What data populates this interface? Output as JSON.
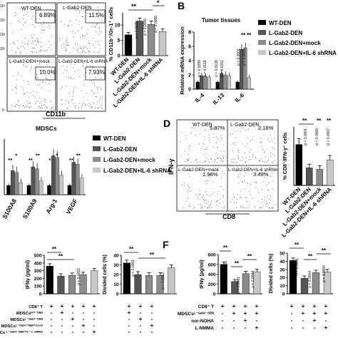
{
  "colors": {
    "wt": "#000000",
    "lgab2": "#555555",
    "mock": "#8c8c8c",
    "shrna": "#c8c8c8"
  },
  "panelA": {
    "flow_quadrants": [
      {
        "label": "WT-DEN",
        "percent": "6.89%"
      },
      {
        "label": "L-Gab2-DEN",
        "percent": "11.5%"
      },
      {
        "label": "L-Gab2-DEN+mock",
        "percent": "10.0%"
      },
      {
        "label": "L-Gab2-DEN+IL-6 shRNA",
        "percent": "7.93%"
      }
    ],
    "flow_xlabel": "CD11b",
    "flow_ticks": [
      "0",
      "10¹",
      "10²",
      "10³",
      "10⁴"
    ]
  },
  "panelD": {
    "letter": "D",
    "flow_quadrants": [
      {
        "label": "WT-DEN",
        "percent": "5.87%"
      },
      {
        "label": "L-Gab2-DEN",
        "percent": "2.18%"
      },
      {
        "label": "L-Gab2-DEN+mock",
        "percent": "1.98%"
      },
      {
        "label": "L-Gab2-DEN+IL-6 shRNA",
        "percent": "3.49%"
      }
    ],
    "flow_xlabel": "CD8",
    "flow_ylabel": "IFN-γ"
  },
  "panelF": {
    "letter": "F"
  },
  "condition_tables": {
    "left": {
      "rows": [
        {
          "label": "CD8⁺ T",
          "signs": [
            "+",
            "+",
            "+",
            "+",
            "+",
            "+",
            "+",
            "+"
          ]
        },
        {
          "label": "MDSCsᵂᵀ⁻ᴰᴱᴺ",
          "signs": [
            "-",
            "+",
            "-",
            "-",
            "-",
            "+",
            "-",
            "-"
          ]
        },
        {
          "label": "MDSCsᴸ⁻ᴳᵃᵇ²⁻ᴰᴱᴺ",
          "signs": [
            "-",
            "-",
            "+",
            "-",
            "-",
            "-",
            "+",
            "-"
          ]
        },
        {
          "label": "MDSCsᴸ⁻ᴳᵃᵇ²⁻ᴰᴱᴺ⁺ᵐᵒᶜᵏ",
          "signs": [
            "-",
            "-",
            "-",
            "+",
            "-",
            "-",
            "-",
            "+"
          ]
        },
        {
          "label": "Cs ᴸ⁻ᴳᵃᵇ²⁻ᴰᴱᴺ⁺ᴵᴸ⁻⁶ ˢʰᴿᴺᴬ",
          "signs": [
            "-",
            "-",
            "-",
            "-",
            "+",
            "-",
            "-",
            "-"
          ]
        }
      ]
    },
    "right": {
      "rows": [
        {
          "label": "CD8⁺ T",
          "signs": [
            "+",
            "+",
            "+",
            "+",
            "+",
            "+",
            "+",
            "+"
          ]
        },
        {
          "label": "MDSCsᴸ⁻ᴳᵃᵇ²⁻ᴰᴱᴺ",
          "signs": [
            "-",
            "+",
            "+",
            "+",
            "-",
            "+",
            "+",
            "+"
          ]
        },
        {
          "label": "nor-NOHA",
          "signs": [
            "-",
            "-",
            "+",
            "-",
            "-",
            "-",
            "+",
            "-"
          ]
        },
        {
          "label": "L-NMMA",
          "signs": [
            "-",
            "-",
            "-",
            "+",
            "-",
            "-",
            "-",
            "+"
          ]
        }
      ]
    }
  },
  "chart_data": [
    {
      "id": "A-bar",
      "type": "bar",
      "ylabel": "% CD11b⁺/Gr-1⁺ cells",
      "categories": [
        "WT-DEN",
        "L-Gab2-DEN",
        "L-Gab2-DEN+mock",
        "L-Gab2-DEN+IL-6 shRNA"
      ],
      "values": [
        6.8,
        11.3,
        10.2,
        7.9
      ],
      "errors": [
        0.8,
        1.0,
        1.1,
        0.9
      ],
      "ylim": [
        0,
        14
      ],
      "yticks": [
        0,
        5,
        10
      ],
      "pvalues": [
        "p = 0.0025",
        "p = 0.0046",
        "p = 0.0086"
      ],
      "sig": [
        "**",
        "*"
      ]
    },
    {
      "id": "B-bar",
      "type": "bar",
      "letter": "B",
      "title": "Tumor tissues",
      "ylabel": "Relative mRNA expression",
      "categories": [
        "IL-4",
        "IL-13",
        "IL-6"
      ],
      "series": [
        {
          "name": "WT-DEN",
          "values": [
            1.0,
            1.0,
            1.0
          ],
          "errors": [
            0.2,
            0.2,
            0.2
          ]
        },
        {
          "name": "L-Gab2-DEN",
          "values": [
            1.9,
            2.2,
            5.6
          ],
          "errors": [
            0.4,
            0.5,
            0.7
          ]
        },
        {
          "name": "L-Gab2-DEN+mock",
          "values": [
            1.8,
            2.0,
            5.8
          ],
          "errors": [
            0.4,
            0.5,
            0.7
          ]
        },
        {
          "name": "L-Gab2-DEN+IL-6 shRNA",
          "values": [
            1.7,
            1.9,
            1.6
          ],
          "errors": [
            0.3,
            0.4,
            0.4
          ]
        }
      ],
      "ylim": [
        0,
        8
      ],
      "yticks": [
        0,
        2,
        4,
        6,
        8
      ],
      "pvalues": [
        "p = 0.0289",
        "p = 0.0119",
        "p = 0.0138",
        "p = 0.0151",
        "p < 0.0001",
        "p < 0.0001"
      ],
      "sig": [
        "**",
        "**"
      ]
    },
    {
      "id": "C-bar",
      "type": "bar",
      "title": "MDSCs",
      "categories": [
        "S100A8",
        "S100A9",
        "Arg-1",
        "VEGF"
      ],
      "series": [
        {
          "name": "WT-DEN",
          "values": [
            1.0,
            1.0,
            1.0,
            1.0
          ],
          "errors": [
            0.2,
            0.2,
            0.2,
            0.2
          ]
        },
        {
          "name": "L-Gab2-DEN",
          "values": [
            2.6,
            3.0,
            4.2,
            3.5
          ],
          "errors": [
            0.6,
            0.6,
            0.7,
            0.6
          ]
        },
        {
          "name": "L-Gab2-DEN+mock",
          "values": [
            2.4,
            2.8,
            4.0,
            3.3
          ],
          "errors": [
            0.6,
            0.6,
            0.7,
            0.6
          ]
        },
        {
          "name": "L-Gab2-DEN+IL-6 shRNA",
          "values": [
            1.3,
            1.5,
            2.1,
            1.8
          ],
          "errors": [
            0.4,
            0.4,
            0.5,
            0.4
          ]
        }
      ],
      "ylim": [
        0,
        6
      ],
      "sig": [
        "**",
        "*",
        "**",
        "**",
        "*",
        "*",
        "**",
        "**"
      ]
    },
    {
      "id": "D-bar",
      "type": "bar",
      "ylabel": "% CD8⁺/IFN-γ⁺ cells",
      "categories": [
        "WT-DEN",
        "L-Gab2-DEN",
        "L-Gab2-DEN+mock",
        "L-Gab2-DEN+IL-6 shRNA"
      ],
      "values": [
        5.6,
        2.4,
        2.2,
        3.5
      ],
      "errors": [
        0.8,
        0.5,
        0.5,
        0.6
      ],
      "ylim": [
        0,
        8
      ],
      "pvalues": [
        "p = 0.0001",
        "p = 0.0065",
        "p = 0.0007"
      ],
      "sig": [
        "**",
        "**",
        "**"
      ]
    },
    {
      "id": "E-ifn",
      "type": "bar",
      "ylabel": "IFNγ (pg/ml)",
      "categories": [
        "1",
        "2",
        "3",
        "4",
        "5"
      ],
      "values": [
        360,
        230,
        240,
        250,
        300
      ],
      "errors": [
        30,
        30,
        30,
        30,
        30
      ],
      "ylim": [
        0,
        500
      ],
      "yticks": [
        0,
        100,
        200,
        300,
        400,
        500
      ],
      "pvalues": [
        "p = 0.0092"
      ],
      "sig": [
        "**",
        "**"
      ]
    },
    {
      "id": "E-div",
      "type": "bar",
      "ylabel": "Divided cells (%)",
      "categories": [
        "1",
        "2",
        "3",
        "4",
        "5"
      ],
      "values": [
        32,
        20,
        19,
        19,
        27
      ],
      "errors": [
        3,
        3,
        3,
        3,
        3
      ],
      "ylim": [
        0,
        40
      ],
      "yticks": [
        0,
        10,
        20,
        30,
        40
      ],
      "pvalues": [
        "p < 0.0001",
        "p = 0.0022"
      ],
      "sig": [
        "**",
        "**"
      ]
    },
    {
      "id": "F-ifn",
      "type": "bar",
      "ylabel": "IFNγ (pg/ml)",
      "categories": [
        "1",
        "2",
        "3",
        "4"
      ],
      "values": [
        600,
        250,
        410,
        450
      ],
      "errors": [
        50,
        40,
        50,
        50
      ],
      "ylim": [
        0,
        800
      ],
      "yticks": [
        0,
        200,
        400,
        600,
        800
      ],
      "pvalues": [
        "p < 0.0001",
        "p = 0.0081",
        "p = 0.0044"
      ],
      "sig": [
        "**",
        "**",
        "**"
      ]
    },
    {
      "id": "F-div",
      "type": "bar",
      "ylabel": "Divided cells (%)",
      "categories": [
        "1",
        "2",
        "3",
        "4"
      ],
      "values": [
        41,
        19,
        26,
        27
      ],
      "errors": [
        3,
        3,
        3,
        3
      ],
      "ylim": [
        0,
        50
      ],
      "yticks": [
        0,
        10,
        20,
        30,
        40,
        50
      ],
      "pvalues": [
        "p < 0.0001",
        "p < 0.0004",
        "p = 0.0006"
      ],
      "sig": [
        "**",
        "**",
        "**"
      ]
    }
  ]
}
